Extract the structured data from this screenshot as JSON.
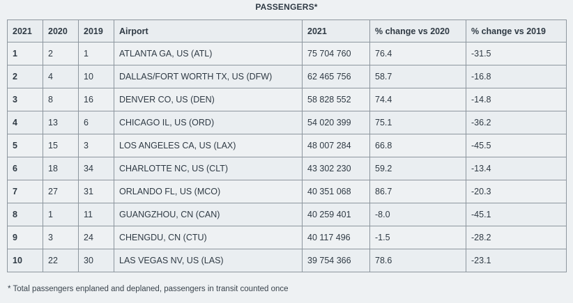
{
  "table": {
    "title": "PASSENGERS*",
    "headers": [
      "2021",
      "2020",
      "2019",
      "Airport",
      "2021",
      "% change vs 2020",
      "% change vs 2019"
    ],
    "rows": [
      [
        "1",
        "2",
        "1",
        "ATLANTA GA, US (ATL)",
        "75 704 760",
        "76.4",
        "-31.5"
      ],
      [
        "2",
        "4",
        "10",
        "DALLAS/FORT WORTH TX, US (DFW)",
        "62 465 756",
        "58.7",
        "-16.8"
      ],
      [
        "3",
        "8",
        "16",
        "DENVER CO, US (DEN)",
        "58 828 552",
        "74.4",
        "-14.8"
      ],
      [
        "4",
        "13",
        "6",
        "CHICAGO IL, US (ORD)",
        "54 020 399",
        "75.1",
        "-36.2"
      ],
      [
        "5",
        "15",
        "3",
        "LOS ANGELES CA, US (LAX)",
        "48 007 284",
        "66.8",
        "-45.5"
      ],
      [
        "6",
        "18",
        "34",
        "CHARLOTTE NC, US (CLT)",
        "43 302 230",
        "59.2",
        "-13.4"
      ],
      [
        "7",
        "27",
        "31",
        "ORLANDO FL, US (MCO)",
        "40 351 068",
        "86.7",
        "-20.3"
      ],
      [
        "8",
        "1",
        "11",
        "GUANGZHOU, CN (CAN)",
        "40 259 401",
        "-8.0",
        "-45.1"
      ],
      [
        "9",
        "3",
        "24",
        "CHENGDU, CN (CTU)",
        "40 117 496",
        "-1.5",
        "-28.2"
      ],
      [
        "10",
        "22",
        "30",
        "LAS VEGAS NV, US (LAS)",
        "39 754 366",
        "78.6",
        "-23.1"
      ]
    ],
    "footnote": "* Total passengers enplaned and deplaned, passengers in transit counted once"
  }
}
